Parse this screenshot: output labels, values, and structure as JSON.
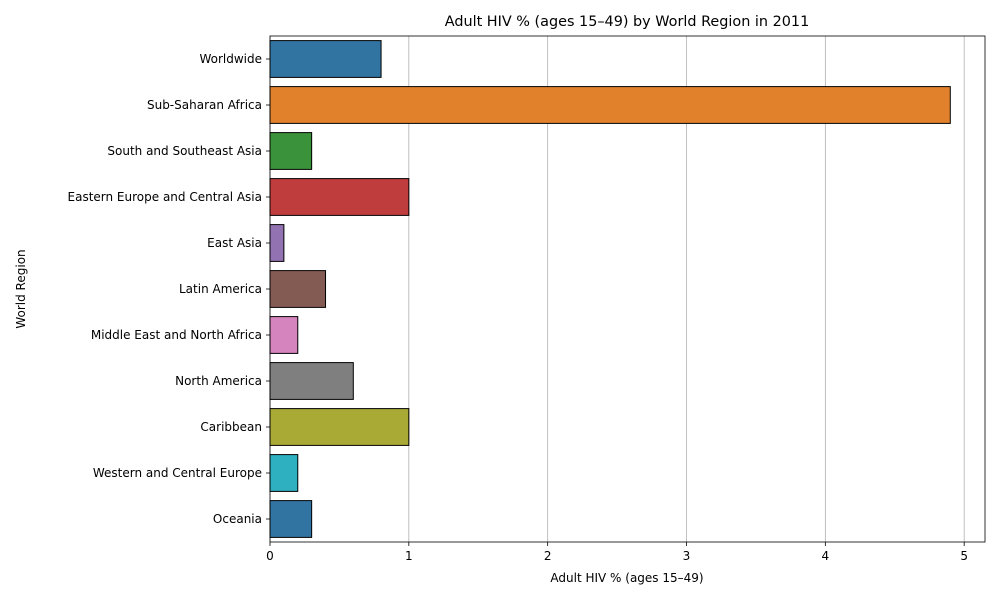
{
  "chart_data": {
    "type": "bar",
    "orientation": "horizontal",
    "title": "Adult HIV % (ages 15–49) by World Region in 2011",
    "xlabel": "Adult HIV % (ages 15–49)",
    "ylabel": "World Region",
    "xlim": [
      0,
      5.15
    ],
    "xticks": [
      0,
      1,
      2,
      3,
      4,
      5
    ],
    "grid": "x",
    "categories": [
      "Worldwide",
      "Sub-Saharan Africa",
      "South and Southeast Asia",
      "Eastern Europe and Central Asia",
      "East Asia",
      "Latin America",
      "Middle East and North Africa",
      "North America",
      "Caribbean",
      "Western and Central Europe",
      "Oceania"
    ],
    "values": [
      0.8,
      4.9,
      0.3,
      1.0,
      0.1,
      0.4,
      0.2,
      0.6,
      1.0,
      0.2,
      0.3
    ],
    "colors": [
      "#3274a1",
      "#e1812c",
      "#3a923a",
      "#c03d3e",
      "#9372b2",
      "#845b53",
      "#d684bd",
      "#7f7f7f",
      "#a9aa35",
      "#2eb0c0",
      "#3274a1"
    ]
  }
}
